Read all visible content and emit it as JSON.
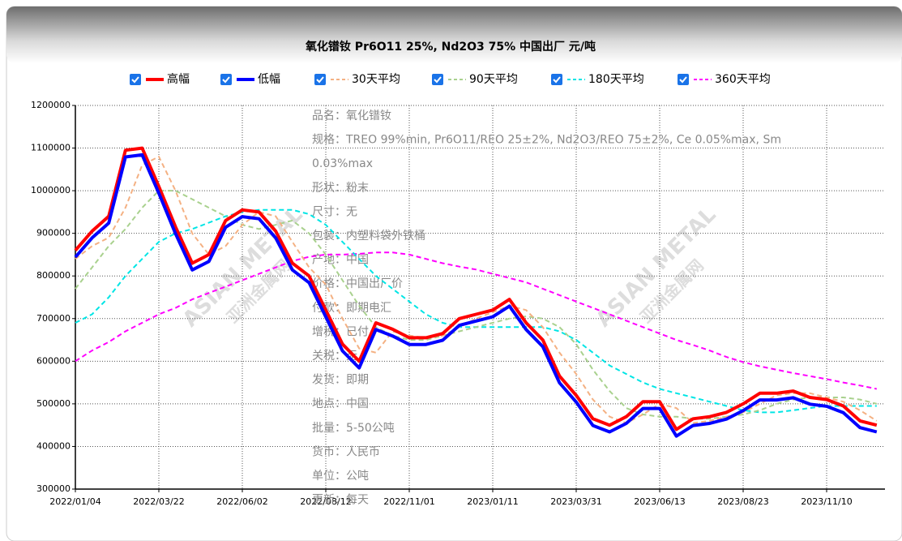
{
  "chart_data": {
    "type": "line",
    "title": "氧化镨钕 Pr6O11 25%, Nd2O3 75% 中国出厂 元/吨",
    "categories": [
      "2022/01/04",
      null,
      null,
      null,
      null,
      "2022/03/22",
      null,
      null,
      null,
      null,
      "2022/06/02",
      null,
      null,
      null,
      null,
      "2022/08/12",
      null,
      null,
      null,
      null,
      "2022/11/01",
      null,
      null,
      null,
      null,
      "2023/01/11",
      null,
      null,
      null,
      null,
      "2023/03/31",
      null,
      null,
      null,
      null,
      "2023/06/13",
      null,
      null,
      null,
      null,
      "2023/08/23",
      null,
      null,
      null,
      null,
      "2023/11/10",
      null,
      null,
      null
    ],
    "series": [
      {
        "name": "高幅",
        "color": "#ff0000",
        "dash": false,
        "values": [
          860000,
          905000,
          940000,
          1095000,
          1100000,
          1010000,
          915000,
          830000,
          850000,
          930000,
          955000,
          950000,
          905000,
          830000,
          800000,
          720000,
          640000,
          600000,
          690000,
          675000,
          655000,
          655000,
          665000,
          700000,
          710000,
          720000,
          745000,
          690000,
          650000,
          565000,
          520000,
          465000,
          450000,
          470000,
          505000,
          505000,
          440000,
          465000,
          470000,
          480000,
          500000,
          525000,
          525000,
          530000,
          515000,
          510000,
          495000,
          460000,
          450000
        ]
      },
      {
        "name": "低幅",
        "color": "#0000ff",
        "dash": false,
        "values": [
          848000,
          893000,
          928000,
          1083000,
          1088000,
          998000,
          903000,
          818000,
          838000,
          918000,
          943000,
          938000,
          893000,
          818000,
          788000,
          708000,
          628000,
          588000,
          678000,
          663000,
          643000,
          643000,
          653000,
          688000,
          698000,
          708000,
          733000,
          678000,
          638000,
          553000,
          508000,
          453000,
          438000,
          458000,
          493000,
          493000,
          428000,
          453000,
          458000,
          468000,
          488000,
          513000,
          513000,
          518000,
          503000,
          498000,
          483000,
          448000,
          438000
        ]
      },
      {
        "name": "30天平均",
        "color": "#f4b183",
        "dash": true,
        "values": [
          840000,
          870000,
          890000,
          960000,
          1060000,
          1080000,
          1000000,
          900000,
          850000,
          870000,
          920000,
          950000,
          940000,
          880000,
          820000,
          780000,
          700000,
          630000,
          620000,
          670000,
          660000,
          655000,
          660000,
          680000,
          700000,
          715000,
          730000,
          720000,
          680000,
          620000,
          570000,
          510000,
          470000,
          455000,
          475000,
          500000,
          490000,
          455000,
          460000,
          470000,
          480000,
          500000,
          520000,
          525000,
          525000,
          515000,
          505000,
          485000,
          460000
        ]
      },
      {
        "name": "90天平均",
        "color": "#a9d18e",
        "dash": true,
        "values": [
          770000,
          820000,
          870000,
          910000,
          960000,
          1000000,
          1000000,
          980000,
          960000,
          940000,
          920000,
          910000,
          920000,
          930000,
          900000,
          850000,
          790000,
          730000,
          680000,
          660000,
          650000,
          650000,
          660000,
          670000,
          680000,
          690000,
          700000,
          705000,
          700000,
          680000,
          640000,
          580000,
          530000,
          490000,
          475000,
          470000,
          470000,
          465000,
          465000,
          470000,
          475000,
          485000,
          500000,
          510000,
          515000,
          515000,
          515000,
          510000,
          500000
        ]
      },
      {
        "name": "180天平均",
        "color": "#00e5e5",
        "dash": true,
        "values": [
          690000,
          710000,
          750000,
          800000,
          840000,
          880000,
          900000,
          910000,
          925000,
          940000,
          950000,
          955000,
          955000,
          955000,
          945000,
          920000,
          880000,
          840000,
          800000,
          770000,
          740000,
          710000,
          690000,
          680000,
          680000,
          680000,
          680000,
          680000,
          680000,
          670000,
          650000,
          620000,
          590000,
          570000,
          550000,
          535000,
          525000,
          515000,
          505000,
          495000,
          485000,
          480000,
          480000,
          485000,
          490000,
          495000,
          495000,
          495000,
          495000
        ]
      },
      {
        "name": "360天平均",
        "color": "#ff00ff",
        "dash": true,
        "values": [
          600000,
          625000,
          645000,
          670000,
          690000,
          710000,
          725000,
          745000,
          760000,
          775000,
          790000,
          805000,
          820000,
          835000,
          845000,
          850000,
          850000,
          852000,
          855000,
          855000,
          850000,
          840000,
          830000,
          822000,
          815000,
          805000,
          795000,
          785000,
          770000,
          755000,
          740000,
          725000,
          710000,
          695000,
          680000,
          665000,
          650000,
          638000,
          625000,
          610000,
          598000,
          588000,
          580000,
          572000,
          565000,
          558000,
          550000,
          543000,
          535000
        ]
      }
    ],
    "ylim": [
      300000,
      1200000
    ],
    "yticks": [
      300000,
      400000,
      500000,
      600000,
      700000,
      800000,
      900000,
      1000000,
      1100000,
      1200000
    ],
    "grid": true,
    "legend": "top",
    "annotations": [
      "品名：氧化镨钕",
      "规格：TREO 99%min, Pr6O11/REO 25±2%, Nd2O3/REO 75±2%, Ce 0.05%max, Sm",
      "0.03%max",
      "形状：粉末",
      "尺寸：无",
      "包装：内塑料袋外铁桶",
      "产地：中国",
      "价格：中国出厂价",
      "付款：即期电汇",
      "增税：已付",
      "关税：无",
      "发货：即期",
      "地点：中国",
      "批量：5-50公吨",
      "货币：人民币",
      "单位：公吨",
      "更新：每天"
    ],
    "watermark": [
      "ASIAN METAL",
      "亚洲金属网"
    ]
  }
}
